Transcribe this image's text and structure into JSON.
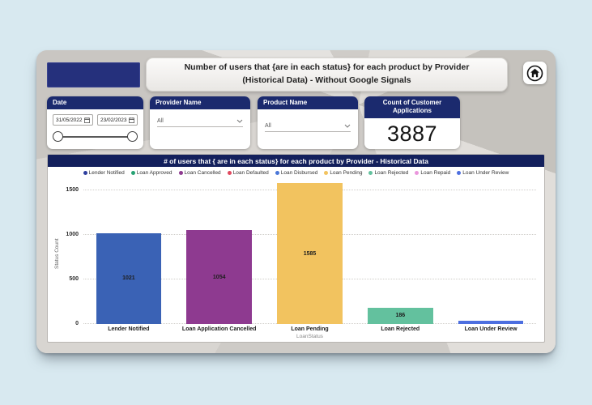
{
  "colors": {
    "page_background": "#d8e9f0",
    "card_header": "#1b2a6e",
    "chart_header": "#13205c",
    "logo_block": "#25307c"
  },
  "header": {
    "title": "Number of users that {are in each status} for each product by Provider (Historical Data) - Without Google Signals",
    "home_icon": "home"
  },
  "icons": {
    "home": "house-in-circle",
    "calendar": "calendar-grid",
    "chevron": "chevron-down"
  },
  "filters": {
    "date": {
      "label": "Date",
      "start": "31/05/2022",
      "end": "23/02/2023"
    },
    "provider": {
      "label": "Provider Name",
      "value": "All"
    },
    "product": {
      "label": "Product Name",
      "value": "All"
    },
    "kpi": {
      "label": "Count of Customer Applications",
      "value": "3887"
    }
  },
  "chart_data": {
    "type": "bar",
    "title": "# of users that { are in each status} for each product by Provider - Historical Data",
    "categories": [
      "Lender Notified",
      "Loan Application Cancelled",
      "Loan Pending",
      "Loan Rejected",
      "Loan Under Review"
    ],
    "values": [
      1021,
      1054,
      1585,
      186,
      40
    ],
    "bar_labels": [
      "1021",
      "1054",
      "1585",
      "186",
      ""
    ],
    "bar_colors": [
      "#3a62b5",
      "#8e3a90",
      "#f2c35f",
      "#63c19e",
      "#4d6fe0"
    ],
    "xlabel": "LoanStatus",
    "ylabel": "Status Count",
    "ylim": [
      0,
      1585
    ],
    "yticks": [
      0,
      500,
      1000,
      1500
    ],
    "grid": "dotted horizontal",
    "legend_position": "top",
    "legend": [
      {
        "label": "Lender Notified",
        "color": "#2e3f9e"
      },
      {
        "label": "Loan Approved",
        "color": "#27a274"
      },
      {
        "label": "Loan Cancelled",
        "color": "#8e3a90"
      },
      {
        "label": "Loan Defaulted",
        "color": "#e0485e"
      },
      {
        "label": "Loan Disbursed",
        "color": "#4a77d8"
      },
      {
        "label": "Loan Pending",
        "color": "#f2c35f"
      },
      {
        "label": "Loan Rejected",
        "color": "#63c19e"
      },
      {
        "label": "Loan Repaid",
        "color": "#ea96dc"
      },
      {
        "label": "Loan Under Review",
        "color": "#4d6fe0"
      }
    ]
  }
}
